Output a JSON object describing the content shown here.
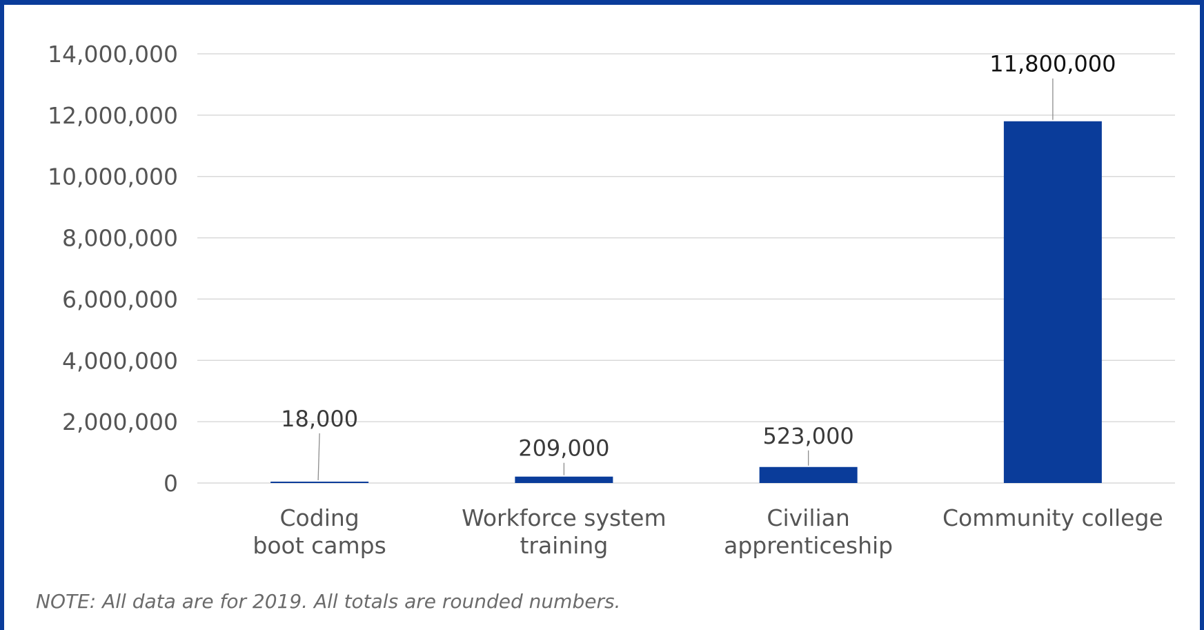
{
  "chart_data": {
    "type": "bar",
    "categories": [
      [
        "Coding",
        "boot camps"
      ],
      [
        "Workforce system",
        "training"
      ],
      [
        "Civilian",
        "apprenticeship"
      ],
      [
        "Community college"
      ]
    ],
    "values": [
      18000,
      209000,
      523000,
      11800000
    ],
    "data_labels": [
      "18,000",
      "209,000",
      "523,000",
      "11,800,000"
    ],
    "ylim": [
      0,
      14000000
    ],
    "yticks": [
      0,
      2000000,
      4000000,
      6000000,
      8000000,
      10000000,
      12000000,
      14000000
    ],
    "ytick_labels": [
      "0",
      "2,000,000",
      "4,000,000",
      "6,000,000",
      "8,000,000",
      "10,000,000",
      "12,000,000",
      "14,000,000"
    ],
    "grid": true,
    "bar_color": "#0a3c9a",
    "title": "",
    "xlabel": "",
    "ylabel": ""
  },
  "note": "NOTE: All data are for 2019. All totals are rounded numbers."
}
